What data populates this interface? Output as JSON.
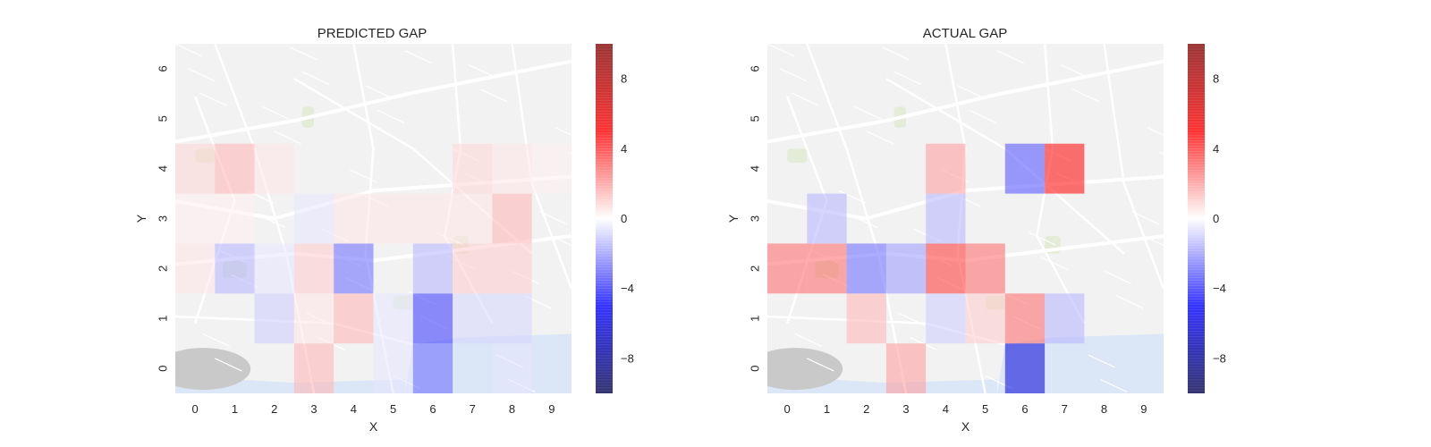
{
  "chart_data": [
    {
      "type": "heatmap",
      "title": "PREDICTED GAP",
      "xlabel": "X",
      "ylabel": "Y",
      "x": [
        0,
        1,
        2,
        3,
        4,
        5,
        6,
        7,
        8,
        9
      ],
      "y": [
        0,
        1,
        2,
        3,
        4,
        5,
        6
      ],
      "x_ticks": [
        "0",
        "1",
        "2",
        "3",
        "4",
        "5",
        "6",
        "7",
        "8",
        "9"
      ],
      "y_ticks": [
        "0",
        "1",
        "2",
        "3",
        "4",
        "5",
        "6"
      ],
      "values": [
        [
          0,
          0,
          0,
          1.5,
          0,
          -0.5,
          -3,
          0,
          -0.5,
          0
        ],
        [
          0,
          0,
          -1,
          0.5,
          1.5,
          -0.5,
          -4,
          -0.8,
          -0.8,
          0
        ],
        [
          0.5,
          -1.5,
          -0.5,
          1,
          -3,
          0,
          -1.5,
          1,
          1,
          0
        ],
        [
          0.3,
          0.3,
          0,
          -0.5,
          0.5,
          0.5,
          0.5,
          0.5,
          1.5,
          0
        ],
        [
          0.8,
          1.5,
          0.5,
          0,
          0,
          0,
          0,
          0.8,
          0.5,
          0.3
        ],
        [
          0,
          0,
          0,
          0,
          0,
          0,
          0,
          0,
          0,
          0
        ],
        [
          0,
          0,
          0,
          0,
          0,
          0,
          0,
          0,
          0,
          0
        ]
      ],
      "colorbar": {
        "colormap": "seismic",
        "range": [
          -10,
          10
        ],
        "ticks": [
          "8",
          "4",
          "0",
          "−4",
          "−8"
        ],
        "tick_values": [
          8,
          4,
          0,
          -4,
          -8
        ]
      },
      "background": "map of Porto"
    },
    {
      "type": "heatmap",
      "title": "ACTUAL GAP",
      "xlabel": "X",
      "ylabel": "Y",
      "x": [
        0,
        1,
        2,
        3,
        4,
        5,
        6,
        7,
        8,
        9
      ],
      "y": [
        0,
        1,
        2,
        3,
        4,
        5,
        6
      ],
      "x_ticks": [
        "0",
        "1",
        "2",
        "3",
        "4",
        "5",
        "6",
        "7",
        "8",
        "9"
      ],
      "y_ticks": [
        "0",
        "1",
        "2",
        "3",
        "4",
        "5",
        "6"
      ],
      "values": [
        [
          0,
          0,
          0,
          2,
          0,
          0,
          -6,
          0,
          0,
          0
        ],
        [
          0,
          0,
          1.5,
          0,
          -1,
          1,
          3,
          -1.5,
          0,
          0
        ],
        [
          3,
          3,
          -3,
          -2,
          4,
          3,
          0,
          0,
          0,
          0
        ],
        [
          0,
          -1.5,
          0,
          0,
          -1.5,
          0,
          0,
          0,
          0,
          0
        ],
        [
          0,
          0,
          0,
          0,
          2,
          0,
          -3.5,
          5,
          0,
          0
        ],
        [
          0,
          0,
          0,
          0,
          0,
          0,
          0,
          0,
          0,
          0
        ],
        [
          0,
          0,
          0,
          0,
          0,
          0,
          0,
          0,
          0,
          0
        ]
      ],
      "colorbar": {
        "colormap": "seismic",
        "range": [
          -10,
          10
        ],
        "ticks": [
          "8",
          "4",
          "0",
          "−4",
          "−8"
        ],
        "tick_values": [
          8,
          4,
          0,
          -4,
          -8
        ]
      },
      "background": "map of Porto"
    }
  ]
}
